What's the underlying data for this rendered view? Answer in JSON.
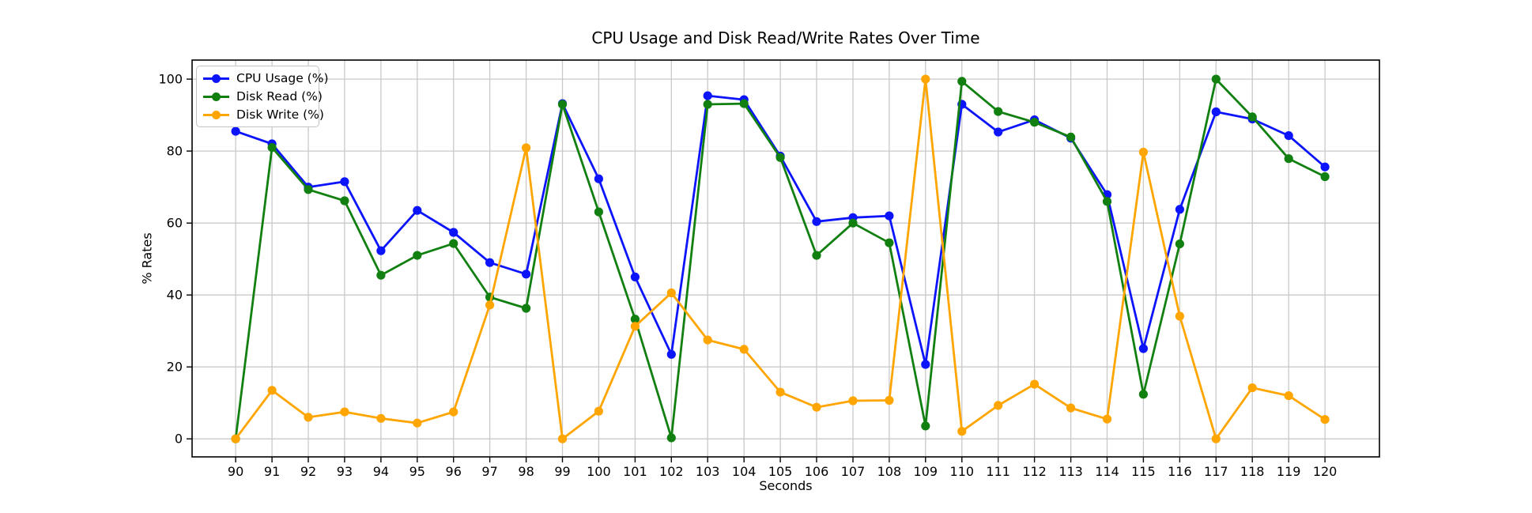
{
  "chart_data": {
    "type": "line",
    "title": "CPU Usage and Disk Read/Write Rates Over Time",
    "xlabel": "Seconds",
    "ylabel": "% Rates",
    "x": [
      90,
      91,
      92,
      93,
      94,
      95,
      96,
      97,
      98,
      99,
      100,
      101,
      102,
      103,
      104,
      105,
      106,
      107,
      108,
      109,
      110,
      111,
      112,
      113,
      114,
      115,
      116,
      117,
      118,
      119,
      120
    ],
    "series": [
      {
        "name": "CPU Usage (%)",
        "color": "#0b14fb",
        "values": [
          85.5,
          82,
          70,
          71.5,
          52.3,
          63.5,
          57.4,
          49,
          45.8,
          93.2,
          72.3,
          45,
          23.5,
          95.4,
          94.3,
          78.6,
          60.4,
          61.5,
          62,
          20.7,
          93,
          85.3,
          88.7,
          83.6,
          67.9,
          25.1,
          63.8,
          90.9,
          88.9,
          84.3,
          75.6
        ]
      },
      {
        "name": "Disk Read (%)",
        "color": "#118011",
        "values": [
          0,
          81,
          69.3,
          66.2,
          45.5,
          51,
          54.3,
          39.4,
          36.3,
          93,
          63.1,
          33.3,
          0.3,
          93,
          93.2,
          78.2,
          51,
          60,
          54.5,
          3.6,
          99.4,
          91,
          88,
          83.9,
          66,
          12.4,
          54.2,
          100,
          89.5,
          77.9,
          72.9
        ]
      },
      {
        "name": "Disk Write (%)",
        "color": "#ffa500",
        "values": [
          0,
          13.5,
          6,
          7.5,
          5.7,
          4.4,
          7.5,
          37.2,
          80.9,
          0,
          7.7,
          31.3,
          40.6,
          27.5,
          24.9,
          13,
          8.8,
          10.6,
          10.7,
          100,
          2.1,
          9.3,
          15.2,
          8.6,
          5.5,
          79.7,
          34.1,
          0,
          14.2,
          12,
          5.4
        ]
      }
    ],
    "yticks": [
      0,
      20,
      40,
      60,
      80,
      100
    ],
    "xlim": [
      88.8,
      121.5
    ],
    "ylim": [
      -5,
      105.3
    ],
    "grid": true,
    "grid_color": "#c9c9c9",
    "legend_position": "upper left"
  }
}
